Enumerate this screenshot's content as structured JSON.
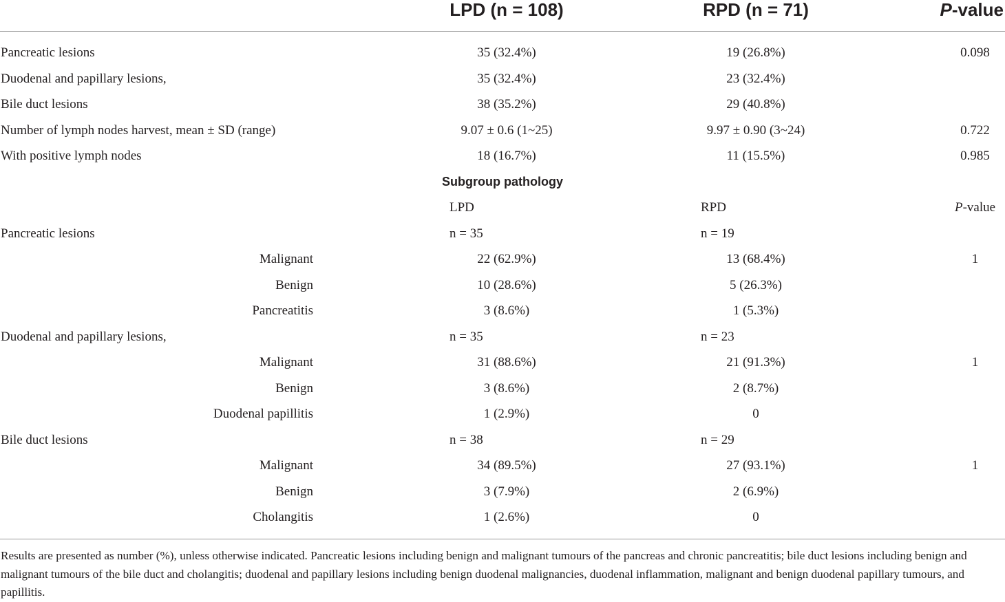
{
  "header": {
    "lpd": "LPD (n = 108)",
    "rpd": "RPD (n = 71)",
    "p_italic": "P",
    "p_rest": "-value"
  },
  "rows": [
    {
      "label": "Pancreatic lesions",
      "lpd": "35 (32.4%)",
      "rpd": "19 (26.8%)",
      "p": "0.098"
    },
    {
      "label": "Duodenal and papillary lesions,",
      "lpd": "35 (32.4%)",
      "rpd": "23 (32.4%)",
      "p": ""
    },
    {
      "label": "Bile duct lesions",
      "lpd": "38 (35.2%)",
      "rpd": "29 (40.8%)",
      "p": ""
    },
    {
      "label": "Number of lymph nodes harvest, mean ± SD (range)",
      "lpd": "9.07 ± 0.6 (1~25)",
      "rpd": "9.97 ± 0.90 (3~24)",
      "p": "0.722"
    },
    {
      "label": "With positive lymph nodes",
      "lpd": "18 (16.7%)",
      "rpd": "11 (15.5%)",
      "p": "0.985"
    }
  ],
  "subgroup": {
    "title": "Subgroup pathology",
    "col_lpd": "LPD",
    "col_rpd": "RPD",
    "col_p_italic": "P",
    "col_p_rest": "-value",
    "groups": [
      {
        "label": "Pancreatic lesions",
        "lpd_n": "n = 35",
        "rpd_n": "n = 19",
        "items": [
          {
            "label": "Malignant",
            "lpd": "22 (62.9%)",
            "rpd": "13 (68.4%)",
            "p": "1"
          },
          {
            "label": "Benign",
            "lpd": "10 (28.6%)",
            "rpd": "5 (26.3%)",
            "p": ""
          },
          {
            "label": "Pancreatitis",
            "lpd": "3 (8.6%)",
            "rpd": "1 (5.3%)",
            "p": ""
          }
        ]
      },
      {
        "label": "Duodenal and papillary lesions,",
        "lpd_n": "n = 35",
        "rpd_n": "n = 23",
        "items": [
          {
            "label": "Malignant",
            "lpd": "31 (88.6%)",
            "rpd": "21 (91.3%)",
            "p": "1"
          },
          {
            "label": "Benign",
            "lpd": "3 (8.6%)",
            "rpd": "2 (8.7%)",
            "p": ""
          },
          {
            "label": "Duodenal papillitis",
            "lpd": "1 (2.9%)",
            "rpd": "0",
            "p": ""
          }
        ]
      },
      {
        "label": "Bile duct lesions",
        "lpd_n": "n = 38",
        "rpd_n": "n = 29",
        "items": [
          {
            "label": "Malignant",
            "lpd": "34 (89.5%)",
            "rpd": "27 (93.1%)",
            "p": "1"
          },
          {
            "label": "Benign",
            "lpd": "3 (7.9%)",
            "rpd": "2 (6.9%)",
            "p": ""
          },
          {
            "label": "Cholangitis",
            "lpd": "1 (2.6%)",
            "rpd": "0",
            "p": ""
          }
        ]
      }
    ]
  },
  "footnote": "Results are presented as number (%), unless otherwise indicated. Pancreatic lesions including benign and malignant tumours of the pancreas and chronic pancreatitis; bile duct lesions including benign and malignant tumours of the bile duct and cholangitis; duodenal and papillary lesions including benign duodenal malignancies, duodenal inflammation, malignant and benign duodenal papillary tumours, and papillitis."
}
